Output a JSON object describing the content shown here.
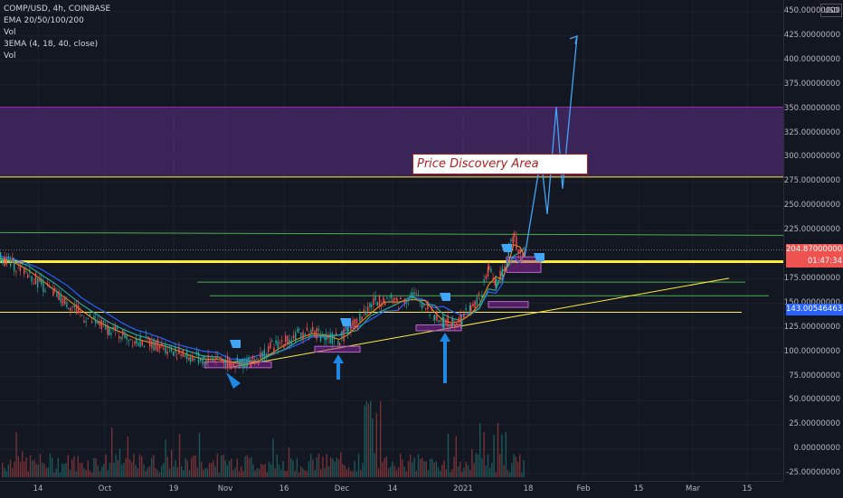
{
  "legend": {
    "symbol": "COMP/USD, 4h, COINBASE",
    "ema": "EMA 20/50/100/200",
    "vol1": "Vol",
    "ema3": "3EMA (4, 18, 40, close)",
    "vol2": "Vol"
  },
  "currency": "USD",
  "annotation": "Price Discovery Area",
  "price_labels": [
    {
      "text": "450.00000000",
      "v": 450
    },
    {
      "text": "425.00000000",
      "v": 425
    },
    {
      "text": "400.00000000",
      "v": 400
    },
    {
      "text": "375.00000000",
      "v": 375
    },
    {
      "text": "350.00000000",
      "v": 350
    },
    {
      "text": "325.00000000",
      "v": 325
    },
    {
      "text": "300.00000000",
      "v": 300
    },
    {
      "text": "275.00000000",
      "v": 275
    },
    {
      "text": "250.00000000",
      "v": 250
    },
    {
      "text": "225.00000000",
      "v": 225
    },
    {
      "text": "175.00000000",
      "v": 175
    },
    {
      "text": "150.00000000",
      "v": 150
    },
    {
      "text": "125.00000000",
      "v": 125
    },
    {
      "text": "100.00000000",
      "v": 100
    },
    {
      "text": "75.00000000",
      "v": 75
    },
    {
      "text": "50.00000000",
      "v": 50
    },
    {
      "text": "25.00000000",
      "v": 25
    },
    {
      "text": "0.00000000",
      "v": 0
    },
    {
      "text": "-25.00000000",
      "v": -25
    }
  ],
  "badges": {
    "last_price": "204.87000000",
    "countdown": "01:47:34",
    "level": "143.00546463",
    "last_price_color": "#ef5350",
    "level_color": "#2962ff"
  },
  "time_labels": [
    "14",
    "Oct",
    "19",
    "Nov",
    "16",
    "Dec",
    "14",
    "2021",
    "18",
    "Feb",
    "15",
    "Mar",
    "15"
  ],
  "colors": {
    "background": "#131722",
    "zone": "#4a2a6b",
    "yellow": "#ffeb3b",
    "green": "#4caf50",
    "projection": "#42a5f5",
    "ema_blue": "#2962ff",
    "ema_green": "#26a69a",
    "ema_orange": "#ff9800",
    "candle_up": "#26a69a",
    "candle_down": "#ef5350"
  },
  "chart_data": {
    "type": "line",
    "symbol": "COMP/USD",
    "interval": "4h",
    "ylim": [
      -35,
      460
    ],
    "resistance_zone": [
      280,
      352
    ],
    "horizontal_levels": {
      "yellow_thick": 193,
      "yellow_thin": 141,
      "green_top": 222,
      "green_mid": 172,
      "green_low": 158
    },
    "price_path": [
      [
        0,
        197
      ],
      [
        15,
        190
      ],
      [
        30,
        182
      ],
      [
        45,
        170
      ],
      [
        60,
        160
      ],
      [
        75,
        150
      ],
      [
        90,
        138
      ],
      [
        105,
        130
      ],
      [
        120,
        124
      ],
      [
        135,
        118
      ],
      [
        150,
        112
      ],
      [
        165,
        110
      ],
      [
        180,
        106
      ],
      [
        195,
        100
      ],
      [
        210,
        95
      ],
      [
        225,
        92
      ],
      [
        240,
        95
      ],
      [
        255,
        87
      ],
      [
        270,
        89
      ],
      [
        285,
        94
      ],
      [
        300,
        105
      ],
      [
        315,
        112
      ],
      [
        330,
        118
      ],
      [
        345,
        122
      ],
      [
        360,
        115
      ],
      [
        375,
        113
      ],
      [
        385,
        125
      ],
      [
        395,
        132
      ],
      [
        410,
        150
      ],
      [
        425,
        155
      ],
      [
        440,
        150
      ],
      [
        455,
        160
      ],
      [
        470,
        148
      ],
      [
        480,
        137
      ],
      [
        490,
        130
      ],
      [
        500,
        132
      ],
      [
        510,
        135
      ],
      [
        520,
        145
      ],
      [
        530,
        155
      ],
      [
        540,
        185
      ],
      [
        548,
        172
      ],
      [
        555,
        180
      ],
      [
        562,
        205
      ],
      [
        568,
        218
      ],
      [
        575,
        200
      ],
      [
        580,
        198
      ]
    ],
    "projection_path": [
      [
        580,
        198
      ],
      [
        598,
        300
      ],
      [
        605,
        242
      ],
      [
        615,
        352
      ],
      [
        622,
        268
      ],
      [
        638,
        425
      ]
    ]
  }
}
